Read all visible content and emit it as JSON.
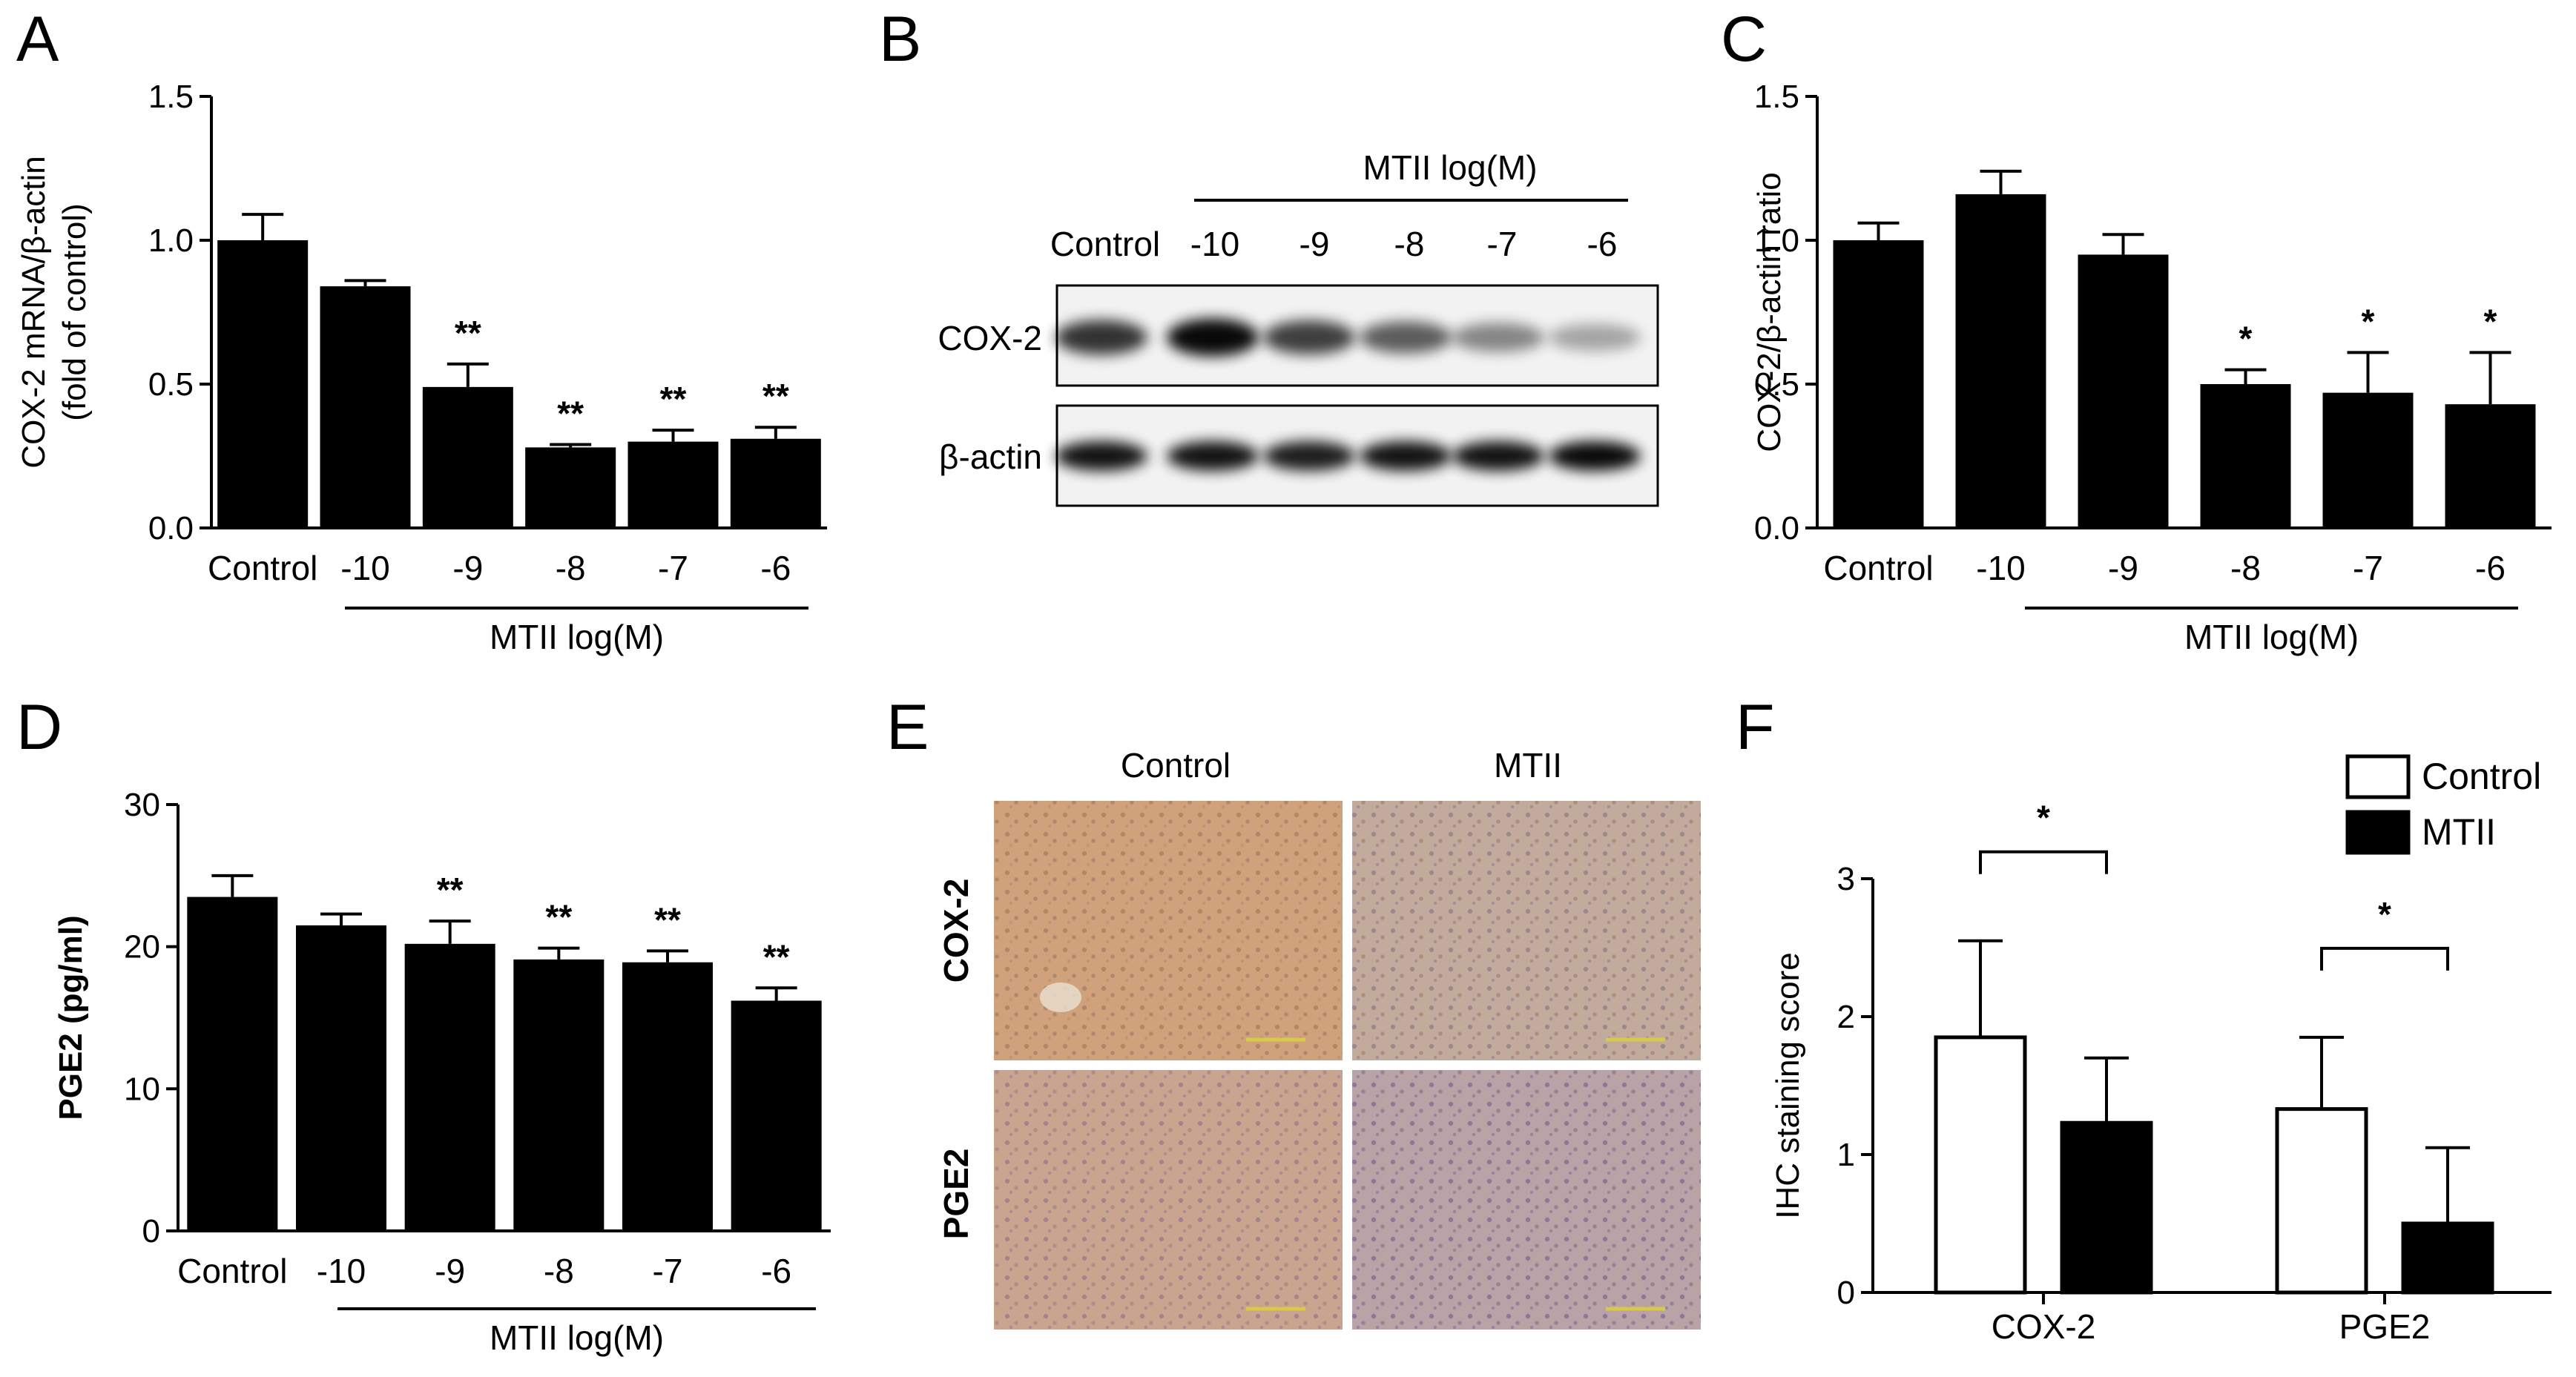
{
  "colors": {
    "bar": "#000000",
    "open_bar": "#ffffff",
    "ihc_bg": "#c9a07a",
    "ihc_bg_mtii": "#b8a194"
  },
  "panels": {
    "A": {
      "letter": "A"
    },
    "B": {
      "letter": "B",
      "group_label": "MTII log(M)",
      "lanes": [
        "Control",
        "-10",
        "-9",
        "-8",
        "-7",
        "-6"
      ],
      "rows": [
        "COX-2",
        "β-actin"
      ],
      "cox2_intensity": [
        0.75,
        0.95,
        0.7,
        0.55,
        0.35,
        0.2
      ],
      "actin_intensity": [
        0.9,
        0.9,
        0.85,
        0.9,
        0.9,
        0.95
      ]
    },
    "C": {
      "letter": "C"
    },
    "D": {
      "letter": "D"
    },
    "E": {
      "letter": "E",
      "col_labels": [
        "Control",
        "MTII"
      ],
      "row_labels": [
        "COX-2",
        "PGE2"
      ]
    },
    "F": {
      "letter": "F"
    }
  },
  "chart_data": [
    {
      "id": "A",
      "type": "bar",
      "categories": [
        "Control",
        "-10",
        "-9",
        "-8",
        "-7",
        "-6"
      ],
      "values": [
        1.0,
        0.84,
        0.49,
        0.28,
        0.3,
        0.31
      ],
      "errors": [
        0.09,
        0.02,
        0.08,
        0.01,
        0.04,
        0.04
      ],
      "significance": [
        "",
        "",
        "**",
        "**",
        "**",
        "**"
      ],
      "ylabel": "COX-2 mRNA/β-actin (fold of control)",
      "ylim": [
        0,
        1.5
      ],
      "yticks": [
        "0.0",
        "0.5",
        "1.0",
        "1.5"
      ],
      "group_label": "MTII log(M)"
    },
    {
      "id": "C",
      "type": "bar",
      "categories": [
        "Control",
        "-10",
        "-9",
        "-8",
        "-7",
        "-6"
      ],
      "values": [
        1.0,
        1.16,
        0.95,
        0.5,
        0.47,
        0.43
      ],
      "errors": [
        0.06,
        0.08,
        0.07,
        0.05,
        0.14,
        0.18
      ],
      "significance": [
        "",
        "",
        "",
        "*",
        "*",
        "*"
      ],
      "ylabel": "COX-2/β-actin ratio",
      "ylim": [
        0,
        1.5
      ],
      "yticks": [
        "0.0",
        "0.5",
        "1.0",
        "1.5"
      ],
      "group_label": "MTII log(M)"
    },
    {
      "id": "D",
      "type": "bar",
      "categories": [
        "Control",
        "-10",
        "-9",
        "-8",
        "-7",
        "-6"
      ],
      "values": [
        23.5,
        21.5,
        20.2,
        19.1,
        18.9,
        16.2
      ],
      "errors": [
        1.5,
        0.8,
        1.6,
        0.8,
        0.8,
        0.9
      ],
      "significance": [
        "",
        "",
        "**",
        "**",
        "**",
        "**"
      ],
      "ylabel": "PGE2 (pg/ml)",
      "ylim": [
        0,
        30
      ],
      "yticks": [
        "0",
        "10",
        "20",
        "30"
      ],
      "group_label": "MTII log(M)"
    },
    {
      "id": "F",
      "type": "bar",
      "categories": [
        "COX-2",
        "PGE2"
      ],
      "series": [
        {
          "name": "Control",
          "values": [
            1.85,
            1.33
          ],
          "errors": [
            0.7,
            0.52
          ]
        },
        {
          "name": "MTII",
          "values": [
            1.23,
            0.5
          ],
          "errors": [
            0.47,
            0.55
          ]
        }
      ],
      "significance": [
        "*",
        "*"
      ],
      "ylabel": "IHC staining score",
      "ylim": [
        0,
        3
      ],
      "yticks": [
        "0",
        "1",
        "2",
        "3"
      ],
      "legend": "top-right"
    }
  ]
}
